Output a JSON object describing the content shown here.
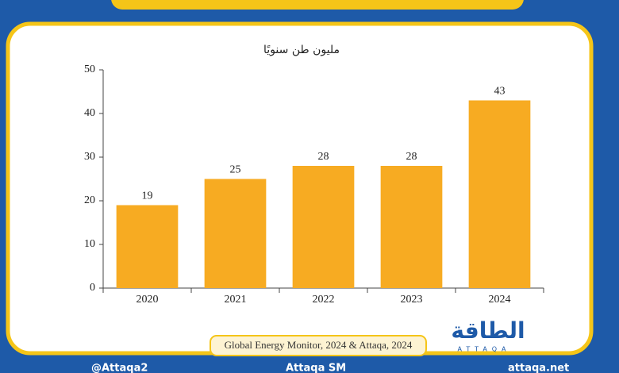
{
  "chart_data": {
    "type": "bar",
    "y_label": "مليون طن سنويًا",
    "categories": [
      "2020",
      "2021",
      "2022",
      "2023",
      "2024"
    ],
    "values": [
      19,
      25,
      28,
      28,
      43
    ],
    "color": "#f7ab22",
    "ylim": [
      0,
      50
    ],
    "yticks": [
      0,
      10,
      20,
      30,
      40,
      50
    ],
    "source": "Global Energy Monitor, 2024 & Attaqa, 2024"
  },
  "brand": {
    "logo": "الطاقة",
    "logo_latin": "ATTAQA"
  },
  "footer": {
    "social": "@Attaqa2",
    "youtube": "Attaqa SM",
    "web": "attaqa.net"
  }
}
